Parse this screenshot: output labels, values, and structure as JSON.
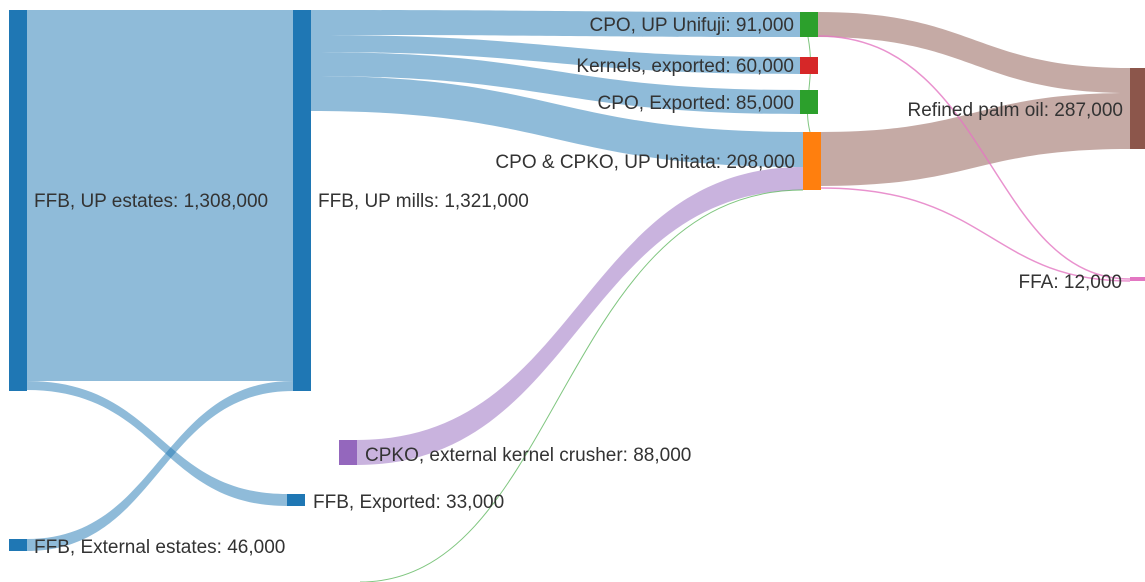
{
  "diagram": {
    "type": "sankey",
    "nodes": [
      {
        "id": "ffb_up_estates",
        "label": "FFB, UP estates: 1,308,000",
        "color": "#1f77b4"
      },
      {
        "id": "ffb_external_estates",
        "label": "FFB, External estates: 46,000",
        "color": "#1f77b4"
      },
      {
        "id": "ffb_up_mills",
        "label": "FFB, UP mills: 1,321,000",
        "color": "#1f77b4"
      },
      {
        "id": "ffb_exported",
        "label": "FFB, Exported: 33,000",
        "color": "#1f77b4"
      },
      {
        "id": "cpko_external_crusher",
        "label": "CPKO, external kernel crusher: 88,000",
        "color": "#9467bd"
      },
      {
        "id": "cpo_up_unifuji",
        "label": "CPO, UP Unifuji: 91,000",
        "color": "#2ca02c"
      },
      {
        "id": "kernels_exported",
        "label": "Kernels, exported: 60,000",
        "color": "#d62728"
      },
      {
        "id": "cpo_exported",
        "label": "CPO, Exported: 85,000",
        "color": "#2ca02c"
      },
      {
        "id": "cpo_cpko_up_unitata",
        "label": "CPO & CPKO, UP Unitata: 208,000",
        "color": "#ff7f0e"
      },
      {
        "id": "refined_palm_oil",
        "label": "Refined palm oil: 287,000",
        "color": "#8c564b"
      },
      {
        "id": "ffa",
        "label": "FFA: 12,000",
        "color": "#e377c2"
      }
    ],
    "links": [
      {
        "source": "ffb_up_estates",
        "target": "ffb_up_mills",
        "color": "#1f77b4"
      },
      {
        "source": "ffb_up_estates",
        "target": "ffb_exported",
        "color": "#1f77b4"
      },
      {
        "source": "ffb_external_estates",
        "target": "ffb_up_mills",
        "color": "#1f77b4"
      },
      {
        "source": "ffb_up_mills",
        "target": "cpo_up_unifuji",
        "color": "#1f77b4"
      },
      {
        "source": "ffb_up_mills",
        "target": "kernels_exported",
        "color": "#1f77b4"
      },
      {
        "source": "ffb_up_mills",
        "target": "cpo_exported",
        "color": "#1f77b4"
      },
      {
        "source": "ffb_up_mills",
        "target": "cpo_cpko_up_unitata",
        "color": "#1f77b4"
      },
      {
        "source": "cpko_external_crusher",
        "target": "cpo_cpko_up_unitata",
        "color": "#9467bd"
      },
      {
        "source": "cpo_up_unifuji",
        "target": "refined_palm_oil",
        "color": "#8c564b"
      },
      {
        "source": "cpo_cpko_up_unitata",
        "target": "refined_palm_oil",
        "color": "#8c564b"
      },
      {
        "source": "cpo_up_unifuji",
        "target": "ffa",
        "color": "#e377c2"
      },
      {
        "source": "cpo_cpko_up_unitata",
        "target": "ffa",
        "color": "#e377c2"
      },
      {
        "source": "cpo_up_unifuji",
        "target": "cpo_cpko_up_unitata",
        "color": "#2ca02c"
      },
      {
        "source": "cpo_cpko_up_unitata",
        "target": "offscreen",
        "color": "#2ca02c"
      }
    ]
  }
}
